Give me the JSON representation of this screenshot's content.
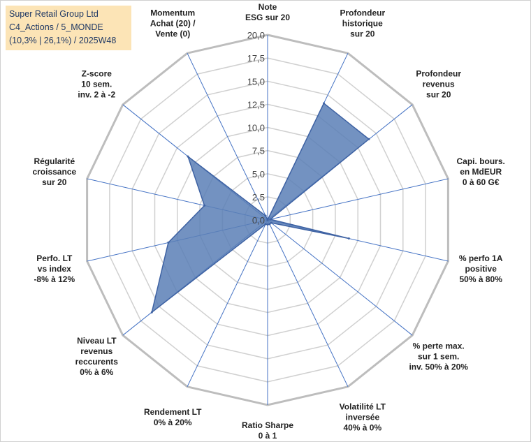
{
  "title_box": {
    "line1": "Super Retail Group Ltd",
    "line2": "C4_Actions / 5_MONDE",
    "line3": "(10,3% | 26,1%) / 2025W48"
  },
  "chart_data": {
    "type": "radar",
    "scale": {
      "min": 0,
      "max": 20,
      "step": 2.5
    },
    "tick_labels": [
      "0,0",
      "2,5",
      "5,0",
      "7,5",
      "10,0",
      "12,5",
      "15,0",
      "17,5",
      "20,0"
    ],
    "axes": [
      {
        "label": [
          "Note",
          "ESG sur 20"
        ],
        "value": 0
      },
      {
        "label": [
          "Profondeur",
          "historique",
          "sur 20"
        ],
        "value": 14
      },
      {
        "label": [
          "Profondeur",
          "revenus",
          "sur 20"
        ],
        "value": 14
      },
      {
        "label": [
          "Capi. bours.",
          "en MdEUR",
          "0 à 60 G€"
        ],
        "value": 0.3
      },
      {
        "label": [
          "% perfo 1A",
          "positive",
          "50% à 80%"
        ],
        "value": 9
      },
      {
        "label": [
          "% perte max.",
          "sur 1 sem.",
          "inv. 50% à 20%"
        ],
        "value": 0.5
      },
      {
        "label": [
          "Volatilité LT",
          "inversée",
          "40% à 0%"
        ],
        "value": 0.5
      },
      {
        "label": [
          "Ratio Sharpe",
          "0 à 1"
        ],
        "value": 0.5
      },
      {
        "label": [
          "Rendement LT",
          "0% à 20%"
        ],
        "value": 0.5
      },
      {
        "label": [
          "Niveau LT",
          "revenus",
          "reccurents",
          "0% à 6%"
        ],
        "value": 16
      },
      {
        "label": [
          "Perfo. LT",
          "vs index",
          "-8% à 12%"
        ],
        "value": 11
      },
      {
        "label": [
          "Régularité",
          "croissance",
          "sur 20"
        ],
        "value": 7
      },
      {
        "label": [
          "Z-score",
          "10 sem.",
          "inv. 2 à -2"
        ],
        "value": 11
      },
      {
        "label": [
          "Momentum",
          "Achat (20) /",
          "Vente (0)"
        ],
        "value": 0.5
      }
    ],
    "grid": true,
    "colors": {
      "fill": "#5b7fb6",
      "stroke": "#3e62a3",
      "ring": "#d0d0d0",
      "outer_ring": "#bdbdbd",
      "spoke": "#4472c4"
    }
  }
}
